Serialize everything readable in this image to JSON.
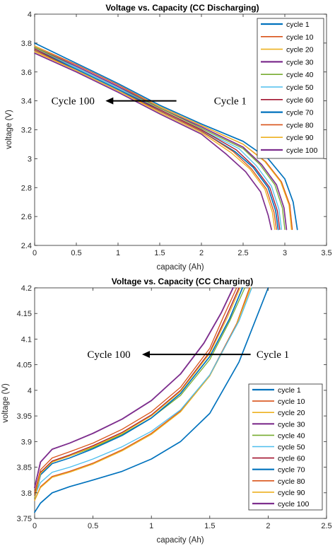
{
  "colors": {
    "axis": "#262626",
    "c1": "#0072BD",
    "c10": "#D95319",
    "c20": "#EDB120",
    "c30": "#7E2F8E",
    "c40": "#77AC30",
    "c50": "#4DBEEE",
    "c60": "#A2142F"
  },
  "chart_data": [
    {
      "type": "line",
      "title": "Voltage vs. Capacity (CC Discharging)",
      "xlabel": "capacity (Ah)",
      "ylabel": "voltage (V)",
      "xlim": [
        0,
        3.5
      ],
      "ylim": [
        2.4,
        4
      ],
      "xticks": [
        "0",
        "0.5",
        "1",
        "1.5",
        "2",
        "2.5",
        "3",
        "3.5"
      ],
      "yticks": [
        "2.4",
        "2.6",
        "2.8",
        "3",
        "3.2",
        "3.4",
        "3.6",
        "3.8",
        "4"
      ],
      "legend_position": "top-right",
      "grid": false,
      "annotations": [
        {
          "text": "Cycle 100",
          "x": 0.2,
          "y": 3.4
        },
        {
          "text": "Cycle 1",
          "x": 2.15,
          "y": 3.4
        }
      ],
      "arrow": {
        "from": [
          1.7,
          3.4
        ],
        "to": [
          0.85,
          3.4
        ]
      },
      "series": [
        {
          "name": "cycle 1",
          "color": "#0072BD",
          "x": [
            0,
            0.5,
            1,
            1.5,
            2,
            2.5,
            2.8,
            3.0,
            3.1,
            3.15
          ],
          "y": [
            3.8,
            3.66,
            3.52,
            3.37,
            3.24,
            3.12,
            3.0,
            2.86,
            2.7,
            2.51
          ]
        },
        {
          "name": "cycle 10",
          "color": "#D95319",
          "x": [
            0,
            0.5,
            1,
            1.5,
            2,
            2.5,
            2.77,
            2.96,
            3.06,
            3.09
          ],
          "y": [
            3.78,
            3.65,
            3.51,
            3.36,
            3.23,
            3.1,
            2.98,
            2.84,
            2.68,
            2.51
          ]
        },
        {
          "name": "cycle 20",
          "color": "#EDB120",
          "x": [
            0,
            0.5,
            1,
            1.5,
            2,
            2.5,
            2.76,
            2.95,
            3.05,
            3.08
          ],
          "y": [
            3.78,
            3.64,
            3.5,
            3.36,
            3.23,
            3.1,
            2.98,
            2.84,
            2.68,
            2.51
          ]
        },
        {
          "name": "cycle 30",
          "color": "#7E2F8E",
          "x": [
            0,
            0.5,
            1,
            1.5,
            2,
            2.5,
            2.72,
            2.9,
            2.99,
            3.02
          ],
          "y": [
            3.77,
            3.64,
            3.5,
            3.35,
            3.22,
            3.08,
            2.96,
            2.82,
            2.66,
            2.51
          ]
        },
        {
          "name": "cycle 40",
          "color": "#77AC30",
          "x": [
            0,
            0.5,
            1,
            1.5,
            2,
            2.5,
            2.7,
            2.88,
            2.97,
            3.0
          ],
          "y": [
            3.77,
            3.63,
            3.49,
            3.35,
            3.21,
            3.07,
            2.96,
            2.82,
            2.66,
            2.51
          ]
        },
        {
          "name": "cycle 50",
          "color": "#4DBEEE",
          "x": [
            0,
            0.5,
            1,
            1.5,
            2,
            2.45,
            2.66,
            2.84,
            2.93,
            2.96
          ],
          "y": [
            3.76,
            3.63,
            3.49,
            3.34,
            3.2,
            3.07,
            2.95,
            2.81,
            2.65,
            2.51
          ]
        },
        {
          "name": "cycle 60",
          "color": "#A2142F",
          "x": [
            0,
            0.5,
            1,
            1.5,
            2,
            2.42,
            2.64,
            2.82,
            2.91,
            2.94
          ],
          "y": [
            3.76,
            3.62,
            3.48,
            3.34,
            3.2,
            3.06,
            2.94,
            2.8,
            2.64,
            2.51
          ]
        },
        {
          "name": "cycle 70",
          "color": "#0072BD",
          "x": [
            0,
            0.5,
            1,
            1.5,
            2,
            2.4,
            2.62,
            2.8,
            2.89,
            2.92
          ],
          "y": [
            3.75,
            3.62,
            3.48,
            3.33,
            3.19,
            3.05,
            2.94,
            2.8,
            2.64,
            2.51
          ]
        },
        {
          "name": "cycle 80",
          "color": "#D95319",
          "x": [
            0,
            0.5,
            1,
            1.5,
            2,
            2.38,
            2.6,
            2.78,
            2.87,
            2.9
          ],
          "y": [
            3.75,
            3.61,
            3.47,
            3.33,
            3.19,
            3.05,
            2.93,
            2.79,
            2.63,
            2.51
          ]
        },
        {
          "name": "cycle 90",
          "color": "#EDB120",
          "x": [
            0,
            0.5,
            1,
            1.5,
            2,
            2.36,
            2.58,
            2.76,
            2.85,
            2.88
          ],
          "y": [
            3.74,
            3.61,
            3.47,
            3.32,
            3.18,
            3.04,
            2.93,
            2.79,
            2.63,
            2.51
          ]
        },
        {
          "name": "cycle 100",
          "color": "#7E2F8E",
          "x": [
            0,
            0.5,
            1,
            1.5,
            2,
            2.3,
            2.53,
            2.71,
            2.8,
            2.84
          ],
          "y": [
            3.73,
            3.6,
            3.46,
            3.31,
            3.17,
            3.03,
            2.91,
            2.77,
            2.61,
            2.51
          ]
        }
      ]
    },
    {
      "type": "line",
      "title": "Voltage vs. Capacity (CC Charging)",
      "xlabel": "capacity (Ah)",
      "ylabel": "voltage (V)",
      "xlim": [
        0,
        2.5
      ],
      "ylim": [
        3.75,
        4.2
      ],
      "xticks": [
        "0",
        "0.5",
        "1",
        "1.5",
        "2",
        "2.5"
      ],
      "yticks": [
        "3.75",
        "3.8",
        "3.85",
        "3.9",
        "3.95",
        "4",
        "4.05",
        "4.1",
        "4.15",
        "4.2"
      ],
      "legend_position": "bottom-right",
      "grid": false,
      "annotations": [
        {
          "text": "Cycle 100",
          "x": 0.45,
          "y": 4.07
        },
        {
          "text": "Cycle 1",
          "x": 1.9,
          "y": 4.07
        }
      ],
      "arrow": {
        "from": [
          1.85,
          4.07
        ],
        "to": [
          0.92,
          4.07
        ]
      },
      "series": [
        {
          "name": "cycle 1",
          "color": "#0072BD",
          "x": [
            0,
            0.05,
            0.15,
            0.3,
            0.5,
            0.75,
            1.0,
            1.25,
            1.5,
            1.75,
            2.0
          ],
          "y": [
            3.762,
            3.78,
            3.8,
            3.812,
            3.825,
            3.842,
            3.866,
            3.9,
            3.955,
            4.055,
            4.2
          ]
        },
        {
          "name": "cycle 10",
          "color": "#D95319",
          "x": [
            0,
            0.05,
            0.15,
            0.3,
            0.5,
            0.75,
            1.0,
            1.25,
            1.5,
            1.73,
            1.84
          ],
          "y": [
            3.785,
            3.812,
            3.832,
            3.842,
            3.858,
            3.884,
            3.916,
            3.96,
            4.03,
            4.13,
            4.2
          ]
        },
        {
          "name": "cycle 20",
          "color": "#EDB120",
          "x": [
            0,
            0.05,
            0.15,
            0.3,
            0.5,
            0.75,
            1.0,
            1.25,
            1.5,
            1.73,
            1.85
          ],
          "y": [
            3.785,
            3.81,
            3.83,
            3.84,
            3.856,
            3.882,
            3.914,
            3.958,
            4.028,
            4.128,
            4.2
          ]
        },
        {
          "name": "cycle 30",
          "color": "#7E2F8E",
          "x": [
            0,
            0.05,
            0.15,
            0.3,
            0.5,
            0.75,
            1.0,
            1.25,
            1.45,
            1.6,
            1.7
          ],
          "y": [
            3.81,
            3.86,
            3.885,
            3.897,
            3.916,
            3.944,
            3.98,
            4.032,
            4.092,
            4.152,
            4.2
          ]
        },
        {
          "name": "cycle 40",
          "color": "#77AC30",
          "x": [
            0,
            0.05,
            0.15,
            0.3,
            0.5,
            0.75,
            1.0,
            1.25,
            1.5,
            1.67,
            1.8
          ],
          "y": [
            3.8,
            3.84,
            3.86,
            3.872,
            3.888,
            3.914,
            3.946,
            3.99,
            4.06,
            4.135,
            4.2
          ]
        },
        {
          "name": "cycle 50",
          "color": "#4DBEEE",
          "x": [
            0,
            0.05,
            0.15,
            0.3,
            0.5,
            0.75,
            1.0,
            1.25,
            1.5,
            1.75,
            1.86
          ],
          "y": [
            3.795,
            3.82,
            3.84,
            3.85,
            3.866,
            3.89,
            3.92,
            3.962,
            4.03,
            4.135,
            4.2
          ]
        },
        {
          "name": "cycle 60",
          "color": "#A2142F",
          "x": [
            0,
            0.05,
            0.15,
            0.3,
            0.5,
            0.75,
            1.0,
            1.25,
            1.5,
            1.64,
            1.75
          ],
          "y": [
            3.795,
            3.84,
            3.862,
            3.874,
            3.892,
            3.918,
            3.952,
            4.0,
            4.075,
            4.143,
            4.2
          ]
        },
        {
          "name": "cycle 70",
          "color": "#0072BD",
          "x": [
            0,
            0.05,
            0.15,
            0.3,
            0.5,
            0.75,
            1.0,
            1.25,
            1.5,
            1.67,
            1.78
          ],
          "y": [
            3.79,
            3.835,
            3.857,
            3.868,
            3.886,
            3.912,
            3.946,
            3.994,
            4.066,
            4.14,
            4.2
          ]
        },
        {
          "name": "cycle 80",
          "color": "#D95319",
          "x": [
            0,
            0.05,
            0.15,
            0.3,
            0.5,
            0.75,
            1.0,
            1.25,
            1.5,
            1.62,
            1.73
          ],
          "y": [
            3.8,
            3.845,
            3.868,
            3.88,
            3.897,
            3.924,
            3.958,
            4.006,
            4.082,
            4.145,
            4.2
          ]
        },
        {
          "name": "cycle 90",
          "color": "#EDB120",
          "x": [
            0,
            0.05,
            0.15,
            0.3,
            0.5,
            0.75,
            1.0,
            1.25,
            1.5,
            1.65,
            1.76
          ],
          "y": [
            3.79,
            3.838,
            3.86,
            3.872,
            3.89,
            3.916,
            3.95,
            3.998,
            4.072,
            4.142,
            4.2
          ]
        },
        {
          "name": "cycle 100",
          "color": "#7E2F8E",
          "x": [
            0,
            0.05,
            0.15,
            0.3,
            0.5,
            0.75,
            1.0,
            1.25,
            1.45,
            1.6,
            1.7
          ],
          "y": [
            3.81,
            3.86,
            3.885,
            3.897,
            3.916,
            3.944,
            3.98,
            4.032,
            4.092,
            4.152,
            4.2
          ]
        }
      ]
    }
  ]
}
